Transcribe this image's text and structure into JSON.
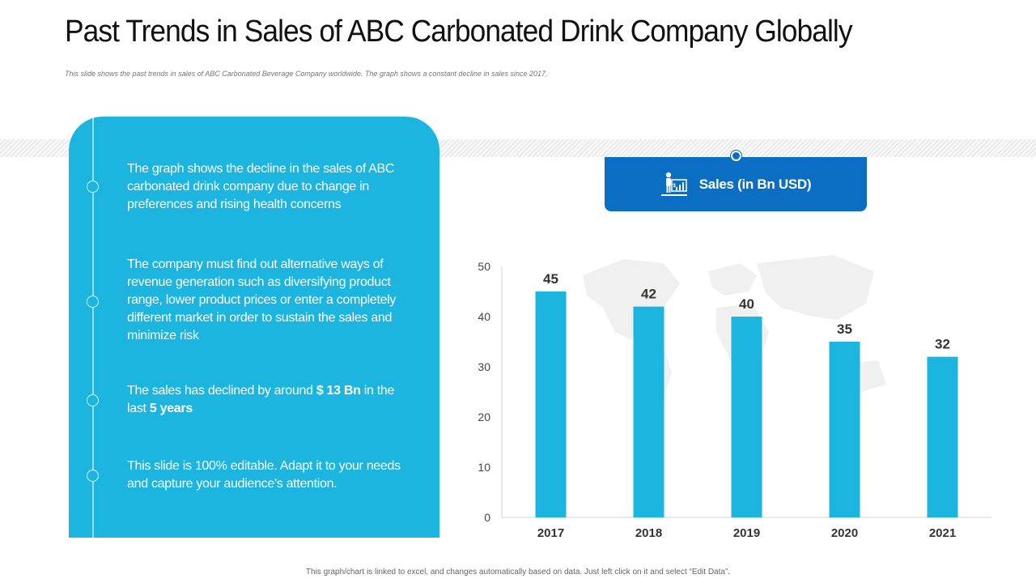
{
  "header": {
    "title": "Past Trends in Sales of ABC Carbonated Drink Company Globally",
    "subtitle": "This slide shows the past trends in sales of ABC Carbonated Beverage Company worldwide. The graph shows a constant decline in sales since 2017."
  },
  "panel": {
    "color": "#1bb5e0",
    "point1": "The graph shows the decline in the sales of ABC carbonated drink company due to change in preferences and rising health concerns",
    "point2": "The company must find out alternative ways of revenue generation such as diversifying product range, lower product prices or enter a completely different market in order to sustain the sales and minimize risk",
    "point3_pre": "The sales has declined by around ",
    "point3_amount": "$ 13 Bn",
    "point3_mid": " in the last ",
    "point3_years": "5 years",
    "point4": "This slide is 100% editable. Adapt it to your needs and capture your audience's attention."
  },
  "legend": {
    "icon": "presenter-chart-icon",
    "label": "Sales (in Bn USD)",
    "color": "#0a6fc2"
  },
  "chart_data": {
    "type": "bar",
    "categories": [
      "2017",
      "2018",
      "2019",
      "2020",
      "2021"
    ],
    "series": [
      {
        "name": "Sales (in Bn USD)",
        "values": [
          45,
          42,
          40,
          35,
          32
        ],
        "color": "#1bb5e0"
      }
    ],
    "ylim": [
      0,
      50
    ],
    "yticks": [
      0,
      10,
      20,
      30,
      40,
      50
    ],
    "data_labels": true,
    "grid": false
  },
  "footer": {
    "note": "This graph/chart is linked to excel, and changes automatically  based on data. Just left click  on it and select  “Edit Data”."
  }
}
